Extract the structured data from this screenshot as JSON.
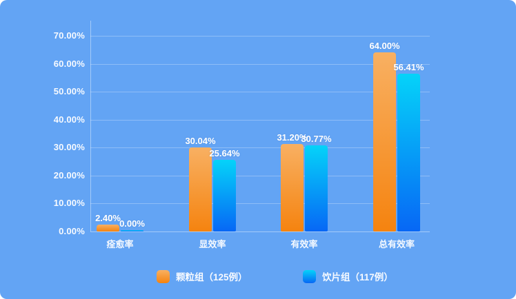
{
  "chart_data": {
    "type": "bar",
    "categories": [
      "痊愈率",
      "显效率",
      "有效率",
      "总有效率"
    ],
    "series": [
      {
        "name": "颗粒组（125例）",
        "values": [
          2.4,
          30.04,
          31.2,
          64.0
        ],
        "value_labels": [
          "2.40%",
          "30.04%",
          "31.20%",
          "64.00%"
        ],
        "gradient": [
          "#F8B062",
          "#F5830F"
        ]
      },
      {
        "name": "饮片组（117例）",
        "values": [
          0.0,
          25.64,
          30.77,
          56.41
        ],
        "value_labels": [
          "0.00%",
          "25.64%",
          "30.77%",
          "56.41%"
        ],
        "gradient": [
          "#05D3F9",
          "#0767F5"
        ]
      }
    ],
    "y_ticks": [
      "70.00%",
      "60.00%",
      "50.00%",
      "40.00%",
      "30.00%",
      "20.00%",
      "10.00%",
      "0.00%"
    ],
    "ylim": [
      0,
      70
    ],
    "grid": true,
    "legend_position": "bottom"
  },
  "colors": {
    "background": "#63A4F4",
    "gridline": "rgba(255,255,255,0.28)",
    "axis": "rgba(255,255,255,0.42)",
    "text": "#FFFFFF"
  }
}
